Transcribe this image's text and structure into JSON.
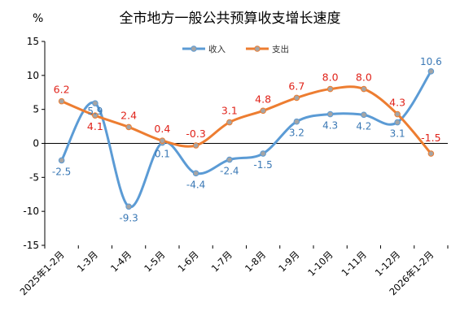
{
  "chart_data": {
    "type": "line",
    "title": "全市地方一般公共预算收支增长速度",
    "y_unit": "%",
    "ylim": [
      -15,
      15
    ],
    "y_ticks": [
      15,
      10,
      5,
      0,
      -5,
      -10,
      -15
    ],
    "categories": [
      "2025年1-2月",
      "1-3月",
      "1-4月",
      "1-5月",
      "1-6月",
      "1-7月",
      "1-8月",
      "1-9月",
      "1-10月",
      "1-11月",
      "1-12月",
      "2026年1-2月"
    ],
    "legend_position": "top-right",
    "grid": false,
    "series": [
      {
        "name": "收入",
        "color": "#5b9bd5",
        "values": [
          -2.5,
          5.9,
          -9.3,
          0.1,
          -4.4,
          -2.4,
          -1.5,
          3.2,
          4.3,
          4.2,
          3.1,
          10.6
        ]
      },
      {
        "name": "支出",
        "color": "#ed7d31",
        "values": [
          6.2,
          4.1,
          2.4,
          0.4,
          -0.3,
          3.1,
          4.8,
          6.7,
          8.0,
          8.0,
          4.3,
          -1.5
        ]
      }
    ]
  }
}
